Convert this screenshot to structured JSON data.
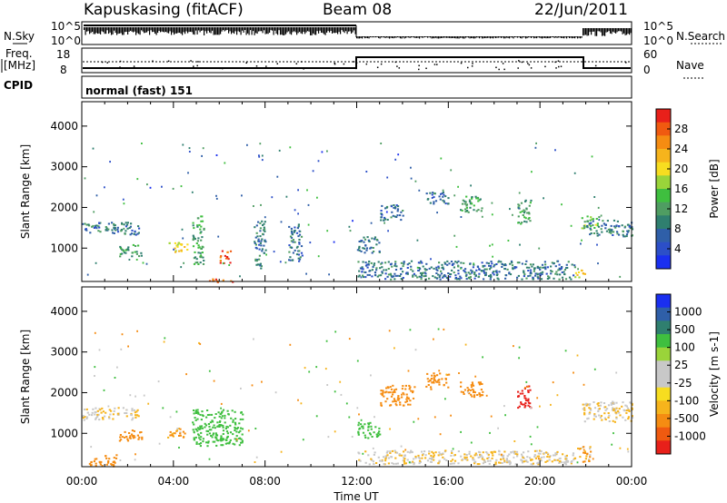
{
  "header": {
    "station": "Kapuskasing (fitACF)",
    "beam": "Beam 08",
    "date": "22/Jun/2011"
  },
  "noise_panel": {
    "left_label": "N.Sky",
    "right_label": "N.Search",
    "left_ticks": [
      "10^5",
      "10^0"
    ],
    "right_ticks": [
      "10^5",
      "10^0"
    ]
  },
  "freq_panel": {
    "left_label_line1": "Freq.",
    "left_label_line2": "[MHz]",
    "right_label": "Nave",
    "left_ticks": [
      "18",
      "8"
    ],
    "right_ticks": [
      "60",
      "0"
    ]
  },
  "cpid": {
    "label": "CPID",
    "text": "normal (fast) 151"
  },
  "chart_data": [
    {
      "type": "heatmap",
      "title": "",
      "xlabel": "",
      "ylabel": "Slant Range [km]",
      "x_ticks": [
        "00:00",
        "04:00",
        "08:00",
        "12:00",
        "16:00",
        "20:00",
        "00:00"
      ],
      "xlim_hours": [
        0,
        24
      ],
      "ylim": [
        180,
        4600
      ],
      "y_ticks": [
        "1000",
        "2000",
        "3000",
        "4000"
      ],
      "colorbar": {
        "label": "Power [dB]",
        "ticks": [
          "28",
          "24",
          "20",
          "16",
          "12",
          "8",
          "4"
        ],
        "colors_top_to_bottom": [
          "#e8201a",
          "#f05a10",
          "#f58c12",
          "#f6b41c",
          "#f7dd20",
          "#9ad43a",
          "#3fbf3f",
          "#4f9d62",
          "#2f7f6f",
          "#2f5fa8",
          "#2c4fc8",
          "#1a2ff0"
        ]
      },
      "echo_regions": [
        {
          "t0": 0.0,
          "t1": 2.5,
          "r0": 1350,
          "r1": 1650,
          "value": 8
        },
        {
          "t0": 1.6,
          "t1": 2.6,
          "r0": 800,
          "r1": 1100,
          "value": 12
        },
        {
          "t0": 3.7,
          "t1": 4.6,
          "r0": 900,
          "r1": 1150,
          "value": 20
        },
        {
          "t0": 6.0,
          "t1": 6.5,
          "r0": 600,
          "r1": 950,
          "value": 28
        },
        {
          "t0": 5.4,
          "t1": 6.6,
          "r0": 180,
          "r1": 260,
          "value": 28
        },
        {
          "t0": 4.8,
          "t1": 5.3,
          "r0": 600,
          "r1": 1800,
          "value": 12
        },
        {
          "t0": 7.5,
          "t1": 8.0,
          "r0": 500,
          "r1": 1700,
          "value": 8
        },
        {
          "t0": 9.0,
          "t1": 9.6,
          "r0": 700,
          "r1": 1600,
          "value": 8
        },
        {
          "t0": 12.0,
          "t1": 13.0,
          "r0": 900,
          "r1": 1300,
          "value": 8
        },
        {
          "t0": 12.0,
          "t1": 21.5,
          "r0": 250,
          "r1": 700,
          "value": 8
        },
        {
          "t0": 13.0,
          "t1": 14.0,
          "r0": 1700,
          "r1": 2100,
          "value": 8
        },
        {
          "t0": 15.0,
          "t1": 16.0,
          "r0": 2100,
          "r1": 2400,
          "value": 8
        },
        {
          "t0": 16.5,
          "t1": 17.5,
          "r0": 1900,
          "r1": 2300,
          "value": 12
        },
        {
          "t0": 19.0,
          "t1": 19.6,
          "r0": 1600,
          "r1": 2200,
          "value": 12
        },
        {
          "t0": 21.8,
          "t1": 22.6,
          "r0": 1500,
          "r1": 1800,
          "value": 16
        },
        {
          "t0": 22.0,
          "t1": 24.0,
          "r0": 1300,
          "r1": 1700,
          "value": 8
        },
        {
          "t0": 21.5,
          "t1": 22.0,
          "r0": 300,
          "r1": 500,
          "value": 20
        }
      ]
    },
    {
      "type": "heatmap",
      "title": "",
      "xlabel": "Time UT",
      "ylabel": "Slant Range [km]",
      "x_ticks": [
        "00:00",
        "04:00",
        "08:00",
        "12:00",
        "16:00",
        "20:00",
        "00:00"
      ],
      "xlim_hours": [
        0,
        24
      ],
      "ylim": [
        180,
        4600
      ],
      "y_ticks": [
        "1000",
        "2000",
        "3000",
        "4000"
      ],
      "colorbar": {
        "label": "Velocity [m s-1]",
        "ticks": [
          "1000",
          "500",
          "100",
          "25",
          "-25",
          "-100",
          "-500",
          "-1000"
        ],
        "colors_top_to_bottom": [
          "#1a2ff0",
          "#2f5fa8",
          "#2f7f6f",
          "#3fbf3f",
          "#9ad43a",
          "#c8c8c8",
          "#c8c8c8",
          "#f7dd20",
          "#f6b41c",
          "#f58c12",
          "#f05a10",
          "#e8201a"
        ]
      },
      "echo_regions": [
        {
          "t0": 0.0,
          "t1": 2.5,
          "r0": 1350,
          "r1": 1650,
          "value": 0
        },
        {
          "t0": 0.3,
          "t1": 1.5,
          "r0": 200,
          "r1": 500,
          "value": -200
        },
        {
          "t0": 1.6,
          "t1": 2.6,
          "r0": 800,
          "r1": 1100,
          "value": -300
        },
        {
          "t0": 3.7,
          "t1": 4.6,
          "r0": 900,
          "r1": 1150,
          "value": -100
        },
        {
          "t0": 4.8,
          "t1": 7.0,
          "r0": 700,
          "r1": 1600,
          "value": 200
        },
        {
          "t0": 12.0,
          "t1": 13.0,
          "r0": 900,
          "r1": 1300,
          "value": 200
        },
        {
          "t0": 12.0,
          "t1": 21.5,
          "r0": 250,
          "r1": 600,
          "value": 0
        },
        {
          "t0": 13.0,
          "t1": 14.5,
          "r0": 1700,
          "r1": 2200,
          "value": -300
        },
        {
          "t0": 15.0,
          "t1": 16.0,
          "r0": 2100,
          "r1": 2500,
          "value": -400
        },
        {
          "t0": 16.5,
          "t1": 17.5,
          "r0": 1900,
          "r1": 2300,
          "value": -400
        },
        {
          "t0": 19.0,
          "t1": 19.6,
          "r0": 1600,
          "r1": 2200,
          "value": -1000
        },
        {
          "t0": 21.8,
          "t1": 24.0,
          "r0": 1300,
          "r1": 1800,
          "value": 0
        },
        {
          "t0": 21.6,
          "t1": 22.2,
          "r0": 300,
          "r1": 700,
          "value": -100
        }
      ]
    }
  ]
}
